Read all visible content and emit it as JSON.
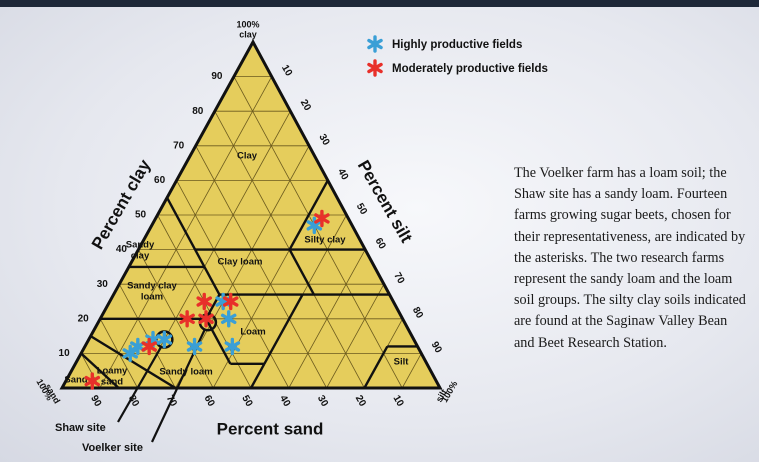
{
  "chart_data": {
    "type": "ternary",
    "corner_labels": {
      "clay": [
        "100%",
        "clay"
      ],
      "sand": [
        "100%",
        "sand"
      ],
      "silt": [
        "100%",
        "silt"
      ]
    },
    "axis_labels": {
      "clay": "Percent clay",
      "silt": "Percent silt",
      "sand": "Percent sand"
    },
    "clay_ticks": [
      10,
      20,
      30,
      40,
      50,
      60,
      70,
      80,
      90
    ],
    "silt_ticks": [
      10,
      20,
      30,
      40,
      50,
      60,
      70,
      80,
      90
    ],
    "sand_ticks": [
      10,
      20,
      30,
      40,
      50,
      60,
      70,
      80,
      90
    ],
    "grid": true,
    "soil_classes": [
      {
        "lines": [
          "Clay"
        ]
      },
      {
        "lines": [
          "Silty clay"
        ]
      },
      {
        "lines": [
          "Sandy",
          "clay"
        ]
      },
      {
        "lines": [
          "Clay loam"
        ]
      },
      {
        "lines": [
          "Sandy clay",
          "loam"
        ]
      },
      {
        "lines": [
          "Loam"
        ]
      },
      {
        "lines": [
          "Sandy loam"
        ]
      },
      {
        "lines": [
          "Loamy",
          "sand"
        ]
      },
      {
        "lines": [
          "Sand"
        ]
      },
      {
        "lines": [
          "Silt"
        ]
      }
    ],
    "series": [
      {
        "name": "Highly productive fields",
        "color": "#3a9fd6",
        "clay": [
          47,
          10,
          12,
          14,
          14,
          12,
          25,
          20,
          12
        ],
        "sand": [
          10,
          77,
          74,
          69,
          66,
          59,
          45,
          46,
          49
        ]
      },
      {
        "name": "Moderately productive fields",
        "color": "#e8302a",
        "clay": [
          49,
          2,
          12,
          20,
          25,
          20,
          25
        ],
        "sand": [
          7,
          91,
          71,
          57,
          50,
          52,
          43
        ]
      }
    ],
    "sites": [
      {
        "name": "Shaw site",
        "clay": 14,
        "sand": 66
      },
      {
        "name": "Voelker site",
        "clay": 19,
        "sand": 52
      }
    ]
  },
  "caption": "The Voelker farm has a loam soil; the Shaw site has a sandy loam. Fourteen farms growing sugar beets, chosen for their representativeness, are indicated by the asterisks. The two research farms represent the sandy loam and the loam soil groups. The silty clay soils indicated are found at the Saginaw Valley Bean and Beet Research Station."
}
